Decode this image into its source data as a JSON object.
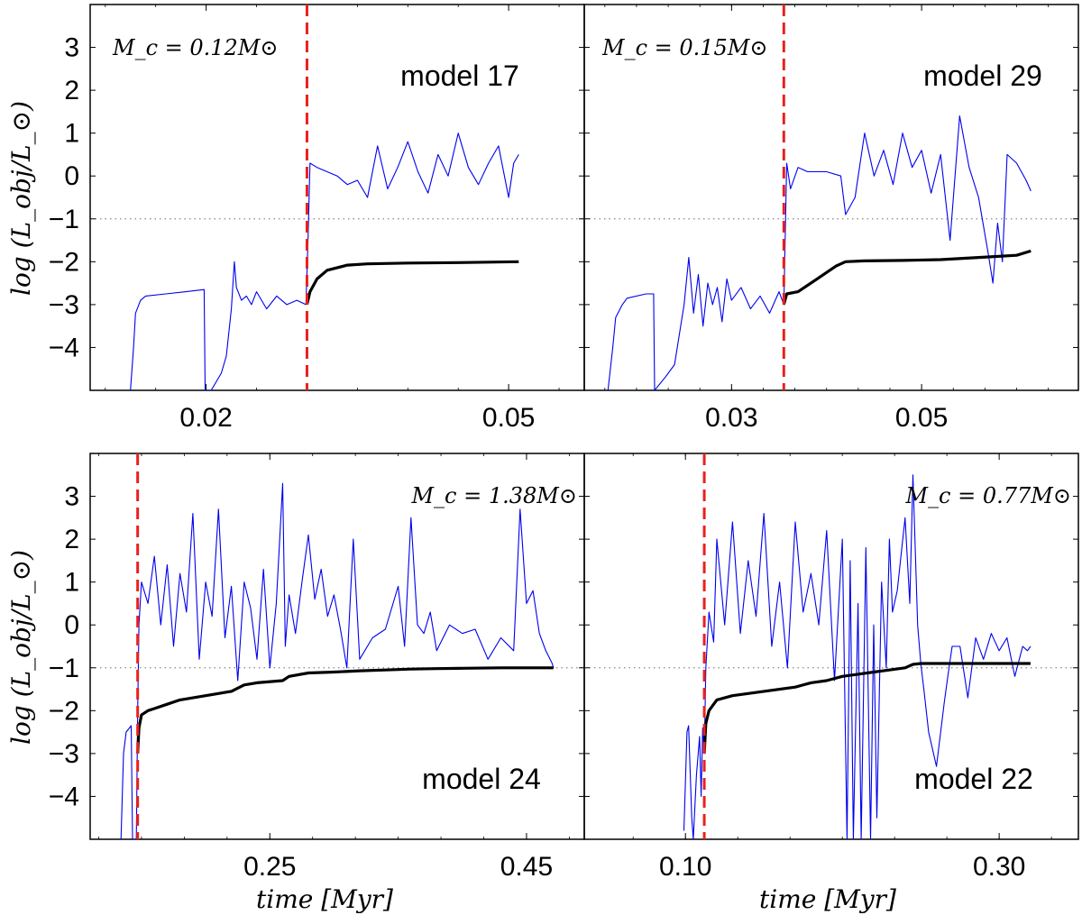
{
  "figure": {
    "ylabel": "log (L_obj/L_⊙)",
    "xlabel": "time [Myr]",
    "colors": {
      "luminosity": "#0000ee",
      "accretion": "#000000",
      "onset": "#e8211d",
      "threshold": "#888888"
    }
  },
  "chart_data": [
    {
      "type": "line",
      "model": "model 17",
      "mass_label": "M_c = 0.12M⊙",
      "ylim": [
        -5,
        4
      ],
      "yticks": [
        -4,
        -3,
        -2,
        -1,
        0,
        1,
        2,
        3
      ],
      "xlim": [
        0.0085,
        0.0575
      ],
      "xticks": [
        0.02,
        0.05
      ],
      "xtick_labels": [
        "0.02",
        "0.05"
      ],
      "onset_time": 0.03,
      "threshold": -1,
      "series": [
        {
          "name": "L_obj",
          "x": [
            0.0125,
            0.0128,
            0.013,
            0.0135,
            0.014,
            0.016,
            0.018,
            0.0198,
            0.0199,
            0.0205,
            0.0215,
            0.022,
            0.0225,
            0.0228,
            0.023,
            0.0235,
            0.024,
            0.0245,
            0.025,
            0.026,
            0.027,
            0.028,
            0.029,
            0.0299,
            0.0301,
            0.0303,
            0.031,
            0.032,
            0.033,
            0.034,
            0.035,
            0.036,
            0.037,
            0.038,
            0.039,
            0.04,
            0.041,
            0.042,
            0.043,
            0.044,
            0.045,
            0.046,
            0.047,
            0.048,
            0.049,
            0.05,
            0.0505,
            0.051
          ],
          "y": [
            -5,
            -4,
            -3.2,
            -2.9,
            -2.8,
            -2.75,
            -2.7,
            -2.65,
            -5,
            -5,
            -4.6,
            -4.2,
            -3.1,
            -2.0,
            -2.6,
            -2.9,
            -2.8,
            -3.0,
            -2.7,
            -3.1,
            -2.8,
            -3.0,
            -2.9,
            -3.0,
            -1.5,
            0.3,
            0.2,
            0.1,
            0.0,
            -0.2,
            -0.1,
            -0.5,
            0.7,
            -0.3,
            0.2,
            0.8,
            0.1,
            -0.4,
            0.5,
            0.0,
            1.0,
            0.2,
            -0.2,
            0.3,
            0.7,
            -0.5,
            0.3,
            0.5
          ]
        },
        {
          "name": "accretion",
          "x": [
            0.03,
            0.0303,
            0.031,
            0.032,
            0.034,
            0.036,
            0.04,
            0.045,
            0.051
          ],
          "y": [
            -3.0,
            -2.7,
            -2.4,
            -2.2,
            -2.08,
            -2.05,
            -2.03,
            -2.02,
            -2.0
          ]
        }
      ]
    },
    {
      "type": "line",
      "model": "model 29",
      "mass_label": "M_c = 0.15M⊙",
      "ylim": [
        -5,
        4
      ],
      "yticks": [
        -4,
        -3,
        -2,
        -1,
        0,
        1,
        2,
        3
      ],
      "xlim": [
        0.0145,
        0.0665
      ],
      "xticks": [
        0.03,
        0.05
      ],
      "xtick_labels": [
        "0.03",
        "0.05"
      ],
      "onset_time": 0.0355,
      "threshold": -1,
      "series": [
        {
          "name": "L_obj",
          "x": [
            0.017,
            0.0175,
            0.0178,
            0.0185,
            0.019,
            0.021,
            0.0218,
            0.0219,
            0.023,
            0.024,
            0.025,
            0.0255,
            0.026,
            0.0265,
            0.027,
            0.0275,
            0.028,
            0.0285,
            0.029,
            0.0295,
            0.03,
            0.031,
            0.032,
            0.033,
            0.034,
            0.035,
            0.0355,
            0.0358,
            0.0362,
            0.037,
            0.038,
            0.04,
            0.0415,
            0.042,
            0.043,
            0.044,
            0.045,
            0.046,
            0.047,
            0.048,
            0.049,
            0.05,
            0.051,
            0.052,
            0.053,
            0.054,
            0.055,
            0.056,
            0.057,
            0.0575,
            0.058,
            0.0585,
            0.059,
            0.06,
            0.061,
            0.0615
          ],
          "y": [
            -5,
            -4.0,
            -3.3,
            -3.0,
            -2.85,
            -2.75,
            -2.75,
            -5,
            -4.7,
            -4.4,
            -3.0,
            -1.9,
            -3.2,
            -2.3,
            -3.5,
            -2.5,
            -3.0,
            -2.6,
            -3.4,
            -2.4,
            -2.9,
            -2.6,
            -3.1,
            -2.8,
            -3.2,
            -2.7,
            -3.0,
            0.3,
            -0.3,
            0.2,
            0.1,
            0.1,
            0.0,
            -0.9,
            -0.5,
            1.0,
            0.0,
            0.6,
            -0.2,
            1.0,
            0.2,
            0.6,
            -0.4,
            0.5,
            -1.5,
            1.4,
            0.2,
            -0.5,
            -1.8,
            -2.5,
            -1.1,
            -2.0,
            0.5,
            0.3,
            -0.1,
            -0.35
          ]
        },
        {
          "name": "accretion",
          "x": [
            0.0355,
            0.0358,
            0.037,
            0.039,
            0.041,
            0.042,
            0.044,
            0.048,
            0.052,
            0.056,
            0.06,
            0.0615
          ],
          "y": [
            -3.0,
            -2.75,
            -2.7,
            -2.4,
            -2.1,
            -2.0,
            -1.98,
            -1.97,
            -1.95,
            -1.9,
            -1.85,
            -1.75
          ]
        }
      ]
    },
    {
      "type": "line",
      "model": "model 24",
      "mass_label": "M_c = 1.38M⊙",
      "ylim": [
        -5,
        4
      ],
      "yticks": [
        -4,
        -3,
        -2,
        -1,
        0,
        1,
        2,
        3
      ],
      "xlim": [
        0.11,
        0.495
      ],
      "xticks": [
        0.25,
        0.45
      ],
      "xtick_labels": [
        "0.25",
        "0.45"
      ],
      "onset_time": 0.147,
      "threshold": -1,
      "series": [
        {
          "name": "L_obj",
          "x": [
            0.134,
            0.136,
            0.138,
            0.142,
            0.143,
            0.146,
            0.147,
            0.148,
            0.15,
            0.155,
            0.16,
            0.165,
            0.17,
            0.175,
            0.18,
            0.185,
            0.19,
            0.195,
            0.2,
            0.205,
            0.21,
            0.215,
            0.22,
            0.225,
            0.23,
            0.235,
            0.24,
            0.245,
            0.25,
            0.255,
            0.26,
            0.262,
            0.265,
            0.27,
            0.275,
            0.28,
            0.285,
            0.29,
            0.295,
            0.3,
            0.305,
            0.31,
            0.315,
            0.32,
            0.33,
            0.34,
            0.35,
            0.355,
            0.36,
            0.365,
            0.37,
            0.375,
            0.38,
            0.39,
            0.4,
            0.41,
            0.42,
            0.43,
            0.44,
            0.445,
            0.45,
            0.455,
            0.46,
            0.465,
            0.47,
            0.471
          ],
          "y": [
            -5,
            -3.0,
            -2.5,
            -2.35,
            -5,
            -5,
            -2.0,
            0.0,
            1.0,
            0.5,
            1.6,
            0.0,
            1.4,
            -0.5,
            1.2,
            0.3,
            2.6,
            -0.8,
            1.0,
            0.2,
            2.7,
            -0.3,
            0.9,
            -1.3,
            1.0,
            0.4,
            -0.8,
            1.3,
            -1.0,
            0.5,
            3.3,
            -0.5,
            0.7,
            -0.2,
            1.0,
            2.1,
            0.6,
            1.3,
            0.2,
            0.7,
            -0.1,
            -1.0,
            2.0,
            -0.8,
            -0.3,
            -0.1,
            0.9,
            -0.5,
            2.5,
            0.0,
            -0.2,
            0.3,
            -0.6,
            0.0,
            -0.2,
            -0.1,
            -0.8,
            -0.3,
            -0.6,
            2.7,
            0.5,
            0.8,
            -0.2,
            -0.6,
            -0.9,
            -1.0
          ]
        },
        {
          "name": "accretion",
          "x": [
            0.147,
            0.148,
            0.15,
            0.155,
            0.16,
            0.17,
            0.18,
            0.19,
            0.2,
            0.21,
            0.22,
            0.23,
            0.24,
            0.26,
            0.265,
            0.28,
            0.3,
            0.32,
            0.34,
            0.36,
            0.38,
            0.4,
            0.43,
            0.471
          ],
          "y": [
            -3.0,
            -2.4,
            -2.1,
            -2.0,
            -1.95,
            -1.85,
            -1.75,
            -1.7,
            -1.65,
            -1.6,
            -1.55,
            -1.4,
            -1.35,
            -1.3,
            -1.2,
            -1.12,
            -1.1,
            -1.07,
            -1.05,
            -1.03,
            -1.02,
            -1.01,
            -1.0,
            -1.0
          ]
        }
      ]
    },
    {
      "type": "line",
      "model": "model 22",
      "mass_label": "M_c = 0.77M⊙",
      "ylim": [
        -5,
        4
      ],
      "yticks": [
        -4,
        -3,
        -2,
        -1,
        0,
        1,
        2,
        3
      ],
      "xlim": [
        0.0355,
        0.3505
      ],
      "xticks": [
        0.1,
        0.3
      ],
      "xtick_labels": [
        "0.10",
        "0.30"
      ],
      "onset_time": 0.112,
      "threshold": -1,
      "series": [
        {
          "name": "L_obj",
          "x": [
            0.099,
            0.101,
            0.102,
            0.104,
            0.105,
            0.107,
            0.109,
            0.11,
            0.111,
            0.112,
            0.113,
            0.115,
            0.118,
            0.12,
            0.125,
            0.13,
            0.135,
            0.14,
            0.145,
            0.15,
            0.155,
            0.16,
            0.165,
            0.17,
            0.175,
            0.18,
            0.185,
            0.19,
            0.195,
            0.2,
            0.203,
            0.205,
            0.207,
            0.21,
            0.212,
            0.215,
            0.218,
            0.22,
            0.222,
            0.225,
            0.228,
            0.23,
            0.232,
            0.235,
            0.24,
            0.243,
            0.245,
            0.248,
            0.25,
            0.252,
            0.255,
            0.26,
            0.265,
            0.268,
            0.27,
            0.275,
            0.28,
            0.285,
            0.29,
            0.295,
            0.3,
            0.305,
            0.31,
            0.315,
            0.318,
            0.32
          ],
          "y": [
            -4.8,
            -2.5,
            -2.35,
            -4.5,
            -5,
            -3.5,
            -2.6,
            -4.0,
            -2.4,
            -3.0,
            -1.0,
            0.3,
            -0.4,
            2.0,
            0.0,
            2.4,
            -0.2,
            1.5,
            0.2,
            2.6,
            -0.5,
            1.0,
            -1.0,
            2.4,
            0.3,
            1.2,
            0.0,
            2.2,
            -1.3,
            2.0,
            -5,
            1.5,
            -5,
            0.5,
            -5,
            1.8,
            -5,
            0.0,
            -4.5,
            1.0,
            -1.0,
            2.0,
            0.3,
            0.8,
            2.5,
            0.5,
            3.5,
            0.0,
            -0.9,
            -1.5,
            -2.5,
            -3.3,
            -1.8,
            -1.0,
            -0.5,
            -0.5,
            -1.7,
            -0.3,
            -0.8,
            -0.2,
            -0.6,
            -0.3,
            -1.2,
            -0.5,
            -0.6,
            -0.5
          ]
        },
        {
          "name": "accretion",
          "x": [
            0.112,
            0.113,
            0.115,
            0.12,
            0.13,
            0.15,
            0.17,
            0.18,
            0.19,
            0.2,
            0.21,
            0.22,
            0.23,
            0.24,
            0.245,
            0.25,
            0.27,
            0.3,
            0.32
          ],
          "y": [
            -3.0,
            -2.3,
            -2.0,
            -1.75,
            -1.65,
            -1.55,
            -1.45,
            -1.35,
            -1.3,
            -1.2,
            -1.15,
            -1.1,
            -1.05,
            -1.0,
            -0.92,
            -0.9,
            -0.9,
            -0.9,
            -0.9
          ]
        }
      ]
    }
  ]
}
